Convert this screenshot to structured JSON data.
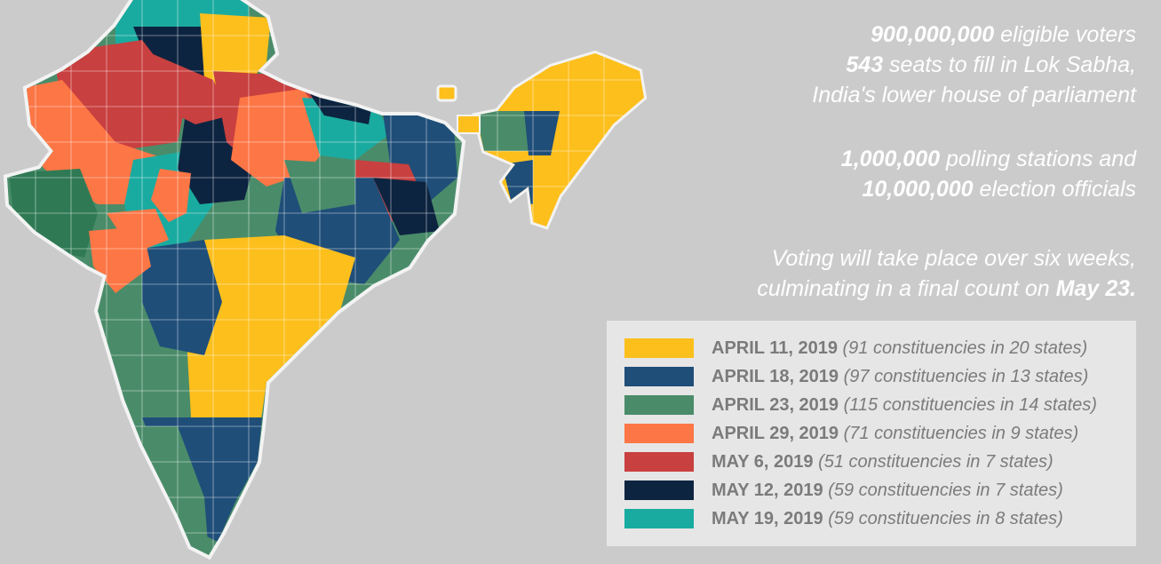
{
  "colors": {
    "background": "#cbcbcb",
    "legend_bg": "#e6e6e6",
    "april_11": "#fdbf1c",
    "april_18": "#1f4e79",
    "april_23": "#4a8c6a",
    "april_29": "#fd7645",
    "may_6": "#c8403f",
    "may_12": "#0d2440",
    "may_19": "#1aaba0",
    "text_white": "#ffffff",
    "legend_text": "#7b7b7b"
  },
  "facts": {
    "line1": {
      "bold": "900,000,000",
      "rest": " eligible voters"
    },
    "line2": {
      "bold": "543",
      "rest": " seats to fill in Lok Sabha,"
    },
    "line3": "India's lower house of parliament",
    "line4": {
      "bold": "1,000,000",
      "rest": " polling stations and"
    },
    "line5": {
      "bold": "10,000,000",
      "rest": " election officials"
    },
    "line6": "Voting will take place over six weeks,",
    "line7": {
      "rest": "culminating in a final count on ",
      "bold": "May 23."
    }
  },
  "legend": [
    {
      "date": "APRIL 11, 2019",
      "detail": " (91 constituencies in 20 states)",
      "color": "#fdbf1c"
    },
    {
      "date": "APRIL 18, 2019",
      "detail": " (97 constituencies in 13 states)",
      "color": "#1f4e79"
    },
    {
      "date": "APRIL 23, 2019",
      "detail": " (115 constituencies in 14 states)",
      "color": "#4a8c6a"
    },
    {
      "date": "APRIL 29, 2019",
      "detail": " (71 constituencies in 9 states)",
      "color": "#fd7645"
    },
    {
      "date": "MAY 6, 2019",
      "detail": " (51 constituencies in 7 states)",
      "color": "#c8403f"
    },
    {
      "date": "MAY 12,  2019",
      "detail": " (59 constituencies in 7 states)",
      "color": "#0d2440"
    },
    {
      "date": "MAY 19, 2019",
      "detail": " (59 constituencies in 8 states)",
      "color": "#1aaba0"
    }
  ]
}
